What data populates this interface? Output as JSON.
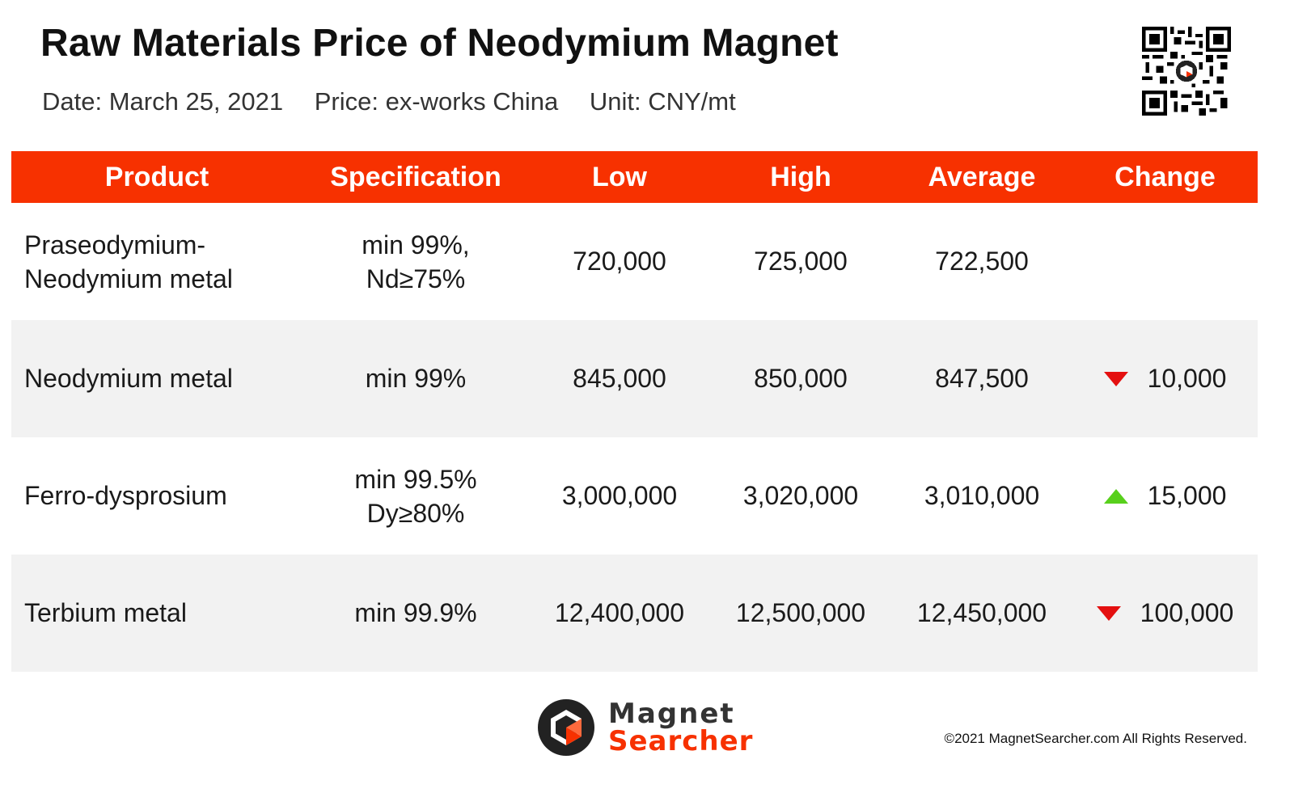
{
  "header": {
    "title": "Raw Materials Price of Neodymium Magnet",
    "date": "Date: March 25, 2021",
    "price": "Price: ex-works China",
    "unit": "Unit: CNY/mt"
  },
  "table": {
    "columns": [
      "Product",
      "Specification",
      "Low",
      "High",
      "Average",
      "Change"
    ],
    "rows": [
      {
        "product": [
          "Praseodymium-",
          "Neodymium metal"
        ],
        "spec": [
          "min 99%,",
          "Nd≥75%"
        ],
        "low": "720,000",
        "high": "725,000",
        "average": "722,500",
        "change": "",
        "direction": "none"
      },
      {
        "product": [
          "Neodymium metal"
        ],
        "spec": [
          "min 99%"
        ],
        "low": "845,000",
        "high": "850,000",
        "average": "847,500",
        "change": "10,000",
        "direction": "down"
      },
      {
        "product": [
          "Ferro-dysprosium"
        ],
        "spec": [
          "min 99.5%",
          "Dy≥80%"
        ],
        "low": "3,000,000",
        "high": "3,020,000",
        "average": "3,010,000",
        "change": "15,000",
        "direction": "up"
      },
      {
        "product": [
          "Terbium metal"
        ],
        "spec": [
          "min 99.9%"
        ],
        "low": "12,400,000",
        "high": "12,500,000",
        "average": "12,450,000",
        "change": "100,000",
        "direction": "down"
      }
    ]
  },
  "footer": {
    "brand_line1": "Magnet",
    "brand_line2": "Searcher",
    "copyright": "©2021 MagnetSearcher.com All Rights Reserved."
  },
  "colors": {
    "header_bg": "#f73100",
    "down": "#e41010",
    "up": "#58d01c"
  },
  "icons": {
    "qr": "qr-code-icon",
    "logo": "magnet-searcher-logo-icon"
  }
}
